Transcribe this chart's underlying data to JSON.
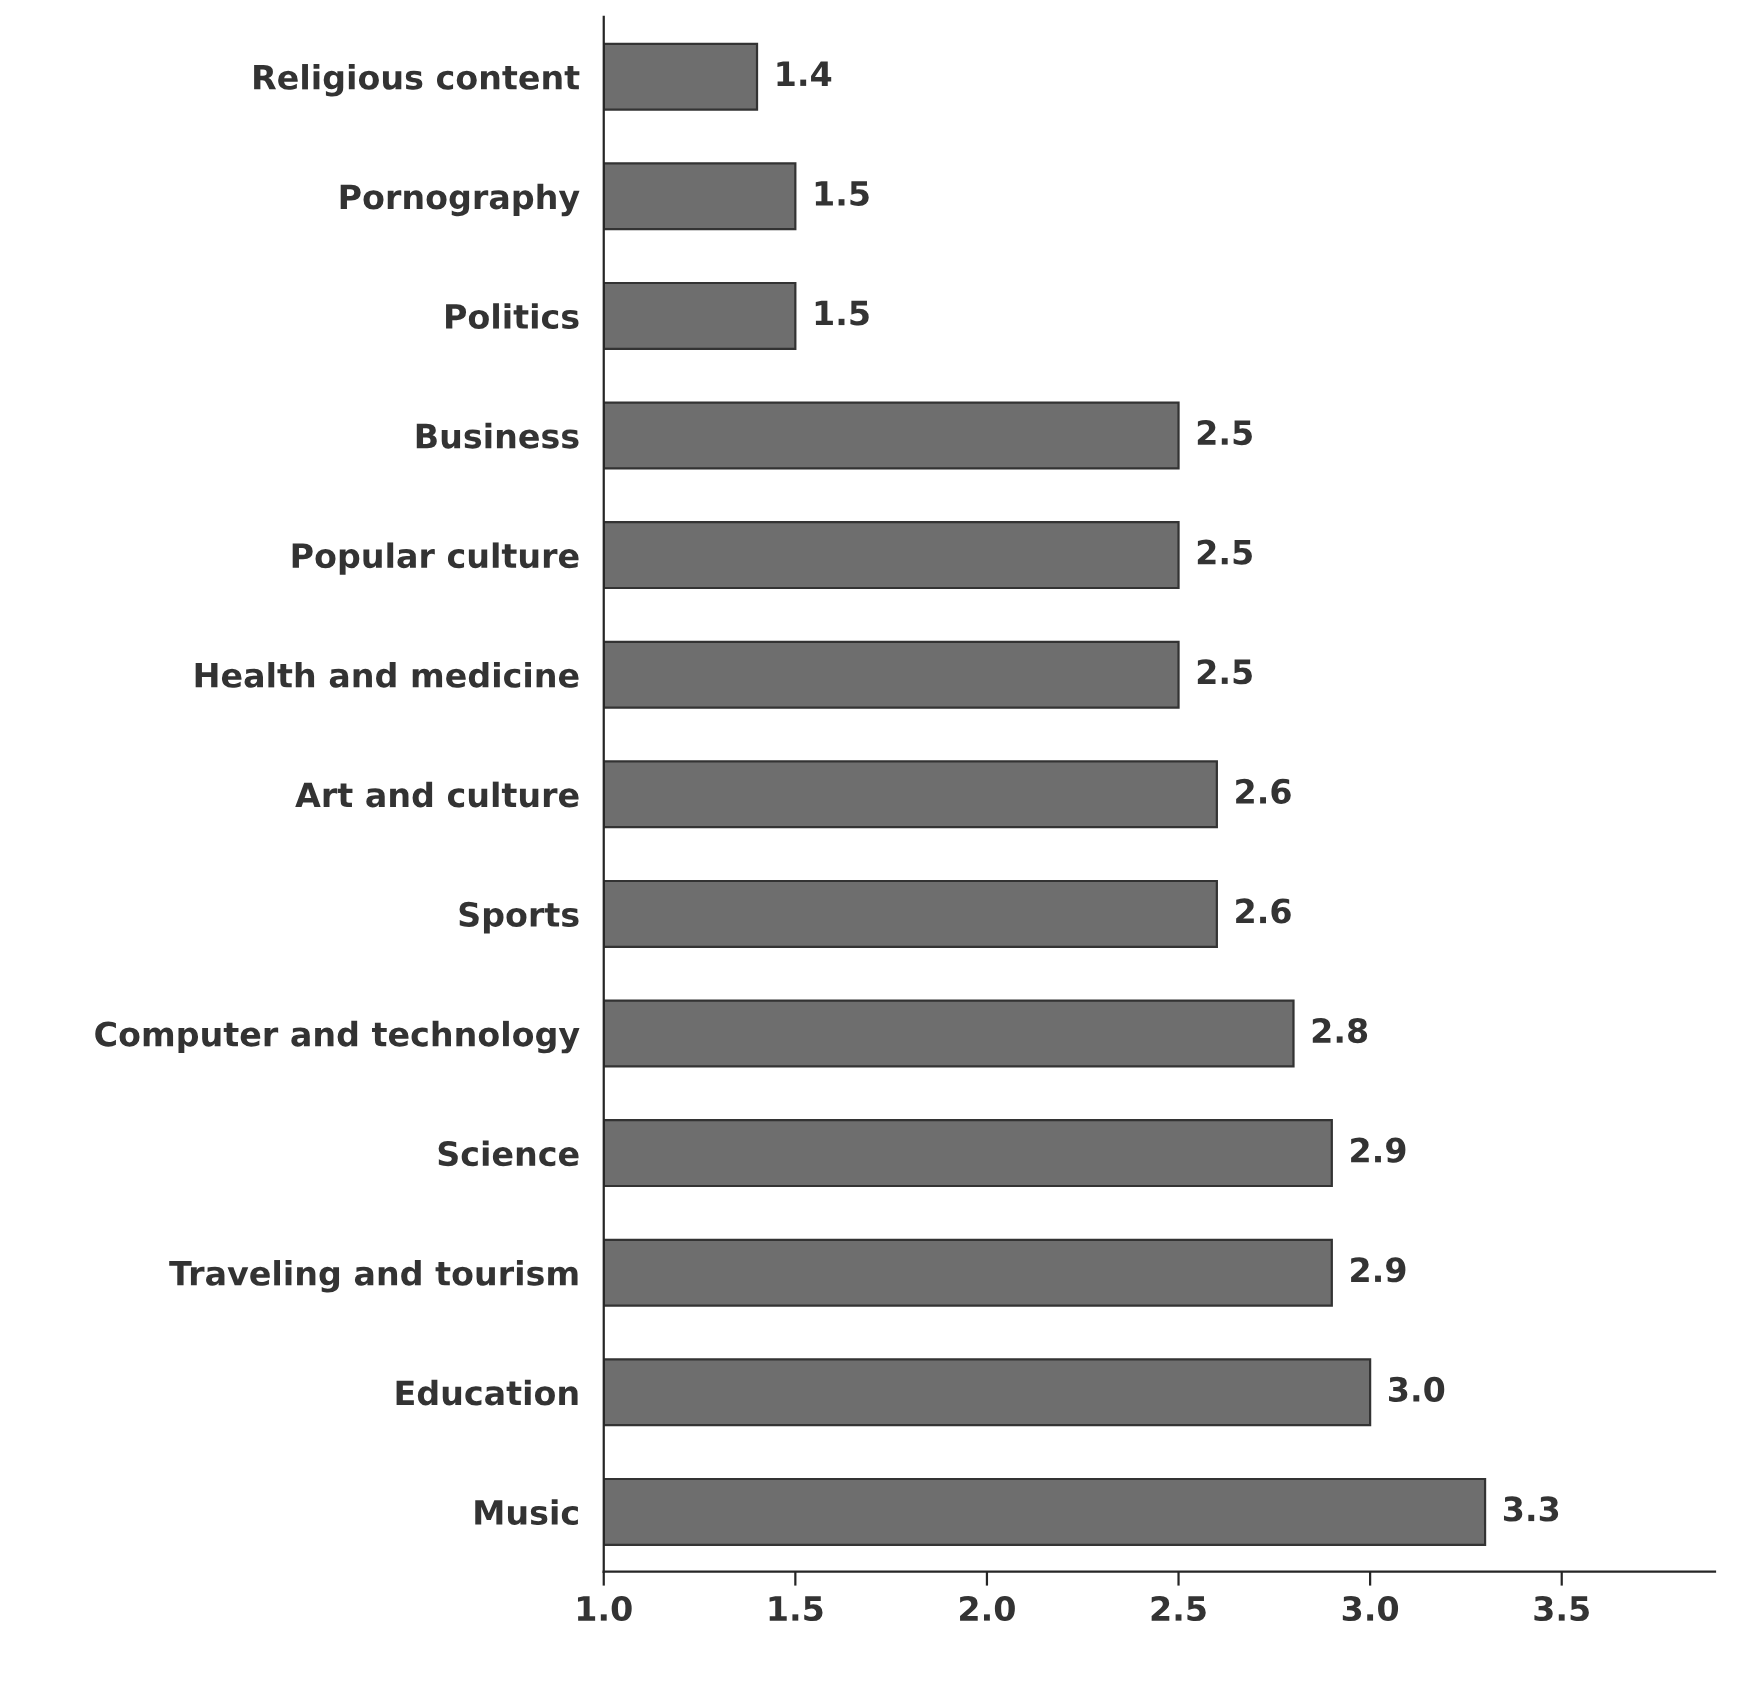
{
  "chart_data": {
    "type": "bar",
    "orientation": "horizontal",
    "categories": [
      "Religious content",
      "Pornography",
      "Politics",
      "Business",
      "Popular culture",
      "Health and medicine",
      "Art and culture",
      "Sports",
      "Computer and technology",
      "Science",
      "Traveling and tourism",
      "Education",
      "Music"
    ],
    "values": [
      1.4,
      1.5,
      1.5,
      2.5,
      2.5,
      2.5,
      2.6,
      2.6,
      2.8,
      2.9,
      2.9,
      3.0,
      3.3
    ],
    "color": "#6e6e6e",
    "xlim": [
      1.0,
      3.9
    ],
    "xticks": [
      {
        "value": 1,
        "label": "1.0"
      },
      {
        "value": 1.5,
        "label": "1.5"
      },
      {
        "value": 2,
        "label": "2.0"
      },
      {
        "value": 2.5,
        "label": "2.5"
      },
      {
        "value": 3,
        "label": "3.0"
      },
      {
        "value": 3.5,
        "label": "3.5"
      }
    ],
    "value_labels": [
      "1.4",
      "1.5",
      "1.5",
      "2.5",
      "2.5",
      "2.5",
      "2.6",
      "2.6",
      "2.8",
      "2.9",
      "2.9",
      "3.0",
      "3.3"
    ],
    "grid": false,
    "legend": false
  }
}
